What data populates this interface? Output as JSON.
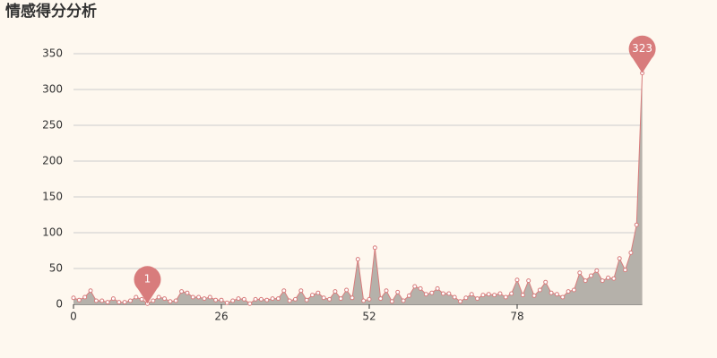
{
  "chart_data": {
    "type": "area",
    "title": "情感得分分析",
    "x": [
      0,
      1,
      2,
      3,
      4,
      5,
      6,
      7,
      8,
      9,
      10,
      11,
      12,
      13,
      14,
      15,
      16,
      17,
      18,
      19,
      20,
      21,
      22,
      23,
      24,
      25,
      26,
      27,
      28,
      29,
      30,
      31,
      32,
      33,
      34,
      35,
      36,
      37,
      38,
      39,
      40,
      41,
      42,
      43,
      44,
      45,
      46,
      47,
      48,
      49,
      50,
      51,
      52,
      53,
      54,
      55,
      56,
      57,
      58,
      59,
      60,
      61,
      62,
      63,
      64,
      65,
      66,
      67,
      68,
      69,
      70,
      71,
      72,
      73,
      74,
      75,
      76,
      77,
      78,
      79,
      80,
      81,
      82,
      83,
      84,
      85,
      86,
      87,
      88,
      89,
      90,
      91,
      92,
      93,
      94,
      95,
      96,
      97,
      98,
      99,
      100
    ],
    "values": [
      9,
      6,
      10,
      19,
      5,
      5,
      3,
      8,
      3,
      3,
      5,
      10,
      7,
      1,
      5,
      10,
      8,
      4,
      5,
      18,
      16,
      10,
      10,
      8,
      10,
      6,
      6,
      2,
      5,
      8,
      7,
      1,
      7,
      7,
      6,
      8,
      8,
      19,
      5,
      7,
      19,
      6,
      13,
      16,
      9,
      7,
      18,
      8,
      20,
      9,
      63,
      5,
      7,
      79,
      8,
      19,
      4,
      17,
      5,
      12,
      25,
      22,
      14,
      16,
      22,
      15,
      15,
      10,
      4,
      9,
      14,
      8,
      13,
      14,
      13,
      15,
      10,
      15,
      34,
      13,
      33,
      12,
      20,
      31,
      16,
      14,
      10,
      18,
      20,
      44,
      33,
      40,
      47,
      33,
      37,
      36,
      64,
      48,
      72,
      111,
      323
    ],
    "line_color": "#d87c7c",
    "area_color": "#b5b1aa",
    "pin_color": "#d87c7c",
    "xlim": [
      0,
      100
    ],
    "xticks": [
      0,
      26,
      52,
      78
    ],
    "ylim": [
      0,
      350
    ],
    "yticks": [
      0,
      50,
      100,
      150,
      200,
      250,
      300,
      350
    ],
    "grid": true
  }
}
